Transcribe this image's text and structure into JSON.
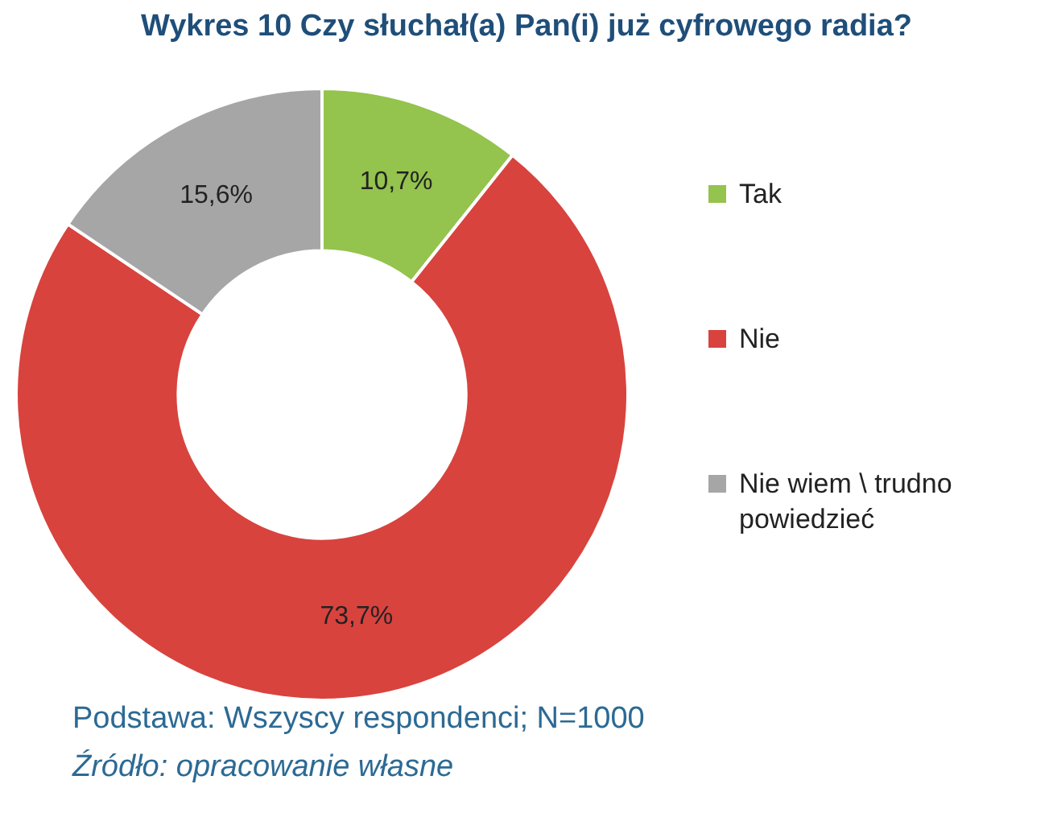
{
  "chart_data": {
    "type": "donut",
    "title": "Wykres 10 Czy słuchał(a) Pan(i) już cyfrowego radia?",
    "categories": [
      "Tak",
      "Nie",
      "Nie wiem \\ trudno powiedzieć"
    ],
    "values": [
      10.7,
      73.7,
      15.6
    ],
    "colors": [
      "#94c34e",
      "#d8433e",
      "#a6a6a6"
    ],
    "value_labels": [
      "10,7%",
      "73,7%",
      "15,6%"
    ],
    "legend": "right",
    "annotations": [
      "Podstawa: Wszyscy respondenci; N=1000",
      "Źródło: opracowanie własne"
    ]
  }
}
